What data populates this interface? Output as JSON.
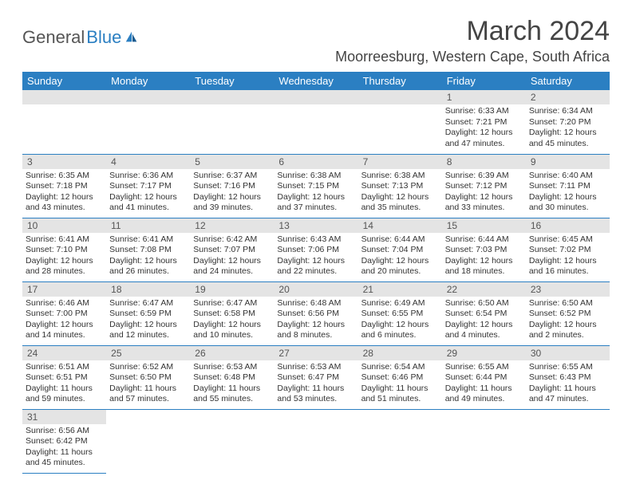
{
  "logo": {
    "general": "General",
    "blue": "Blue"
  },
  "title": "March 2024",
  "location": "Moorreesburg, Western Cape, South Africa",
  "weekdays": [
    "Sunday",
    "Monday",
    "Tuesday",
    "Wednesday",
    "Thursday",
    "Friday",
    "Saturday"
  ],
  "colors": {
    "header_bg": "#2b7fc2",
    "daynum_bg": "#e4e4e4",
    "border": "#2b7fc2",
    "text": "#333333",
    "title_text": "#444444"
  },
  "days": [
    null,
    null,
    null,
    null,
    null,
    {
      "n": "1",
      "sr": "6:33 AM",
      "ss": "7:21 PM",
      "dl": "12 hours and 47 minutes."
    },
    {
      "n": "2",
      "sr": "6:34 AM",
      "ss": "7:20 PM",
      "dl": "12 hours and 45 minutes."
    },
    {
      "n": "3",
      "sr": "6:35 AM",
      "ss": "7:18 PM",
      "dl": "12 hours and 43 minutes."
    },
    {
      "n": "4",
      "sr": "6:36 AM",
      "ss": "7:17 PM",
      "dl": "12 hours and 41 minutes."
    },
    {
      "n": "5",
      "sr": "6:37 AM",
      "ss": "7:16 PM",
      "dl": "12 hours and 39 minutes."
    },
    {
      "n": "6",
      "sr": "6:38 AM",
      "ss": "7:15 PM",
      "dl": "12 hours and 37 minutes."
    },
    {
      "n": "7",
      "sr": "6:38 AM",
      "ss": "7:13 PM",
      "dl": "12 hours and 35 minutes."
    },
    {
      "n": "8",
      "sr": "6:39 AM",
      "ss": "7:12 PM",
      "dl": "12 hours and 33 minutes."
    },
    {
      "n": "9",
      "sr": "6:40 AM",
      "ss": "7:11 PM",
      "dl": "12 hours and 30 minutes."
    },
    {
      "n": "10",
      "sr": "6:41 AM",
      "ss": "7:10 PM",
      "dl": "12 hours and 28 minutes."
    },
    {
      "n": "11",
      "sr": "6:41 AM",
      "ss": "7:08 PM",
      "dl": "12 hours and 26 minutes."
    },
    {
      "n": "12",
      "sr": "6:42 AM",
      "ss": "7:07 PM",
      "dl": "12 hours and 24 minutes."
    },
    {
      "n": "13",
      "sr": "6:43 AM",
      "ss": "7:06 PM",
      "dl": "12 hours and 22 minutes."
    },
    {
      "n": "14",
      "sr": "6:44 AM",
      "ss": "7:04 PM",
      "dl": "12 hours and 20 minutes."
    },
    {
      "n": "15",
      "sr": "6:44 AM",
      "ss": "7:03 PM",
      "dl": "12 hours and 18 minutes."
    },
    {
      "n": "16",
      "sr": "6:45 AM",
      "ss": "7:02 PM",
      "dl": "12 hours and 16 minutes."
    },
    {
      "n": "17",
      "sr": "6:46 AM",
      "ss": "7:00 PM",
      "dl": "12 hours and 14 minutes."
    },
    {
      "n": "18",
      "sr": "6:47 AM",
      "ss": "6:59 PM",
      "dl": "12 hours and 12 minutes."
    },
    {
      "n": "19",
      "sr": "6:47 AM",
      "ss": "6:58 PM",
      "dl": "12 hours and 10 minutes."
    },
    {
      "n": "20",
      "sr": "6:48 AM",
      "ss": "6:56 PM",
      "dl": "12 hours and 8 minutes."
    },
    {
      "n": "21",
      "sr": "6:49 AM",
      "ss": "6:55 PM",
      "dl": "12 hours and 6 minutes."
    },
    {
      "n": "22",
      "sr": "6:50 AM",
      "ss": "6:54 PM",
      "dl": "12 hours and 4 minutes."
    },
    {
      "n": "23",
      "sr": "6:50 AM",
      "ss": "6:52 PM",
      "dl": "12 hours and 2 minutes."
    },
    {
      "n": "24",
      "sr": "6:51 AM",
      "ss": "6:51 PM",
      "dl": "11 hours and 59 minutes."
    },
    {
      "n": "25",
      "sr": "6:52 AM",
      "ss": "6:50 PM",
      "dl": "11 hours and 57 minutes."
    },
    {
      "n": "26",
      "sr": "6:53 AM",
      "ss": "6:48 PM",
      "dl": "11 hours and 55 minutes."
    },
    {
      "n": "27",
      "sr": "6:53 AM",
      "ss": "6:47 PM",
      "dl": "11 hours and 53 minutes."
    },
    {
      "n": "28",
      "sr": "6:54 AM",
      "ss": "6:46 PM",
      "dl": "11 hours and 51 minutes."
    },
    {
      "n": "29",
      "sr": "6:55 AM",
      "ss": "6:44 PM",
      "dl": "11 hours and 49 minutes."
    },
    {
      "n": "30",
      "sr": "6:55 AM",
      "ss": "6:43 PM",
      "dl": "11 hours and 47 minutes."
    },
    {
      "n": "31",
      "sr": "6:56 AM",
      "ss": "6:42 PM",
      "dl": "11 hours and 45 minutes."
    },
    null,
    null,
    null,
    null,
    null,
    null
  ],
  "labels": {
    "sunrise": "Sunrise:",
    "sunset": "Sunset:",
    "daylight": "Daylight:"
  }
}
